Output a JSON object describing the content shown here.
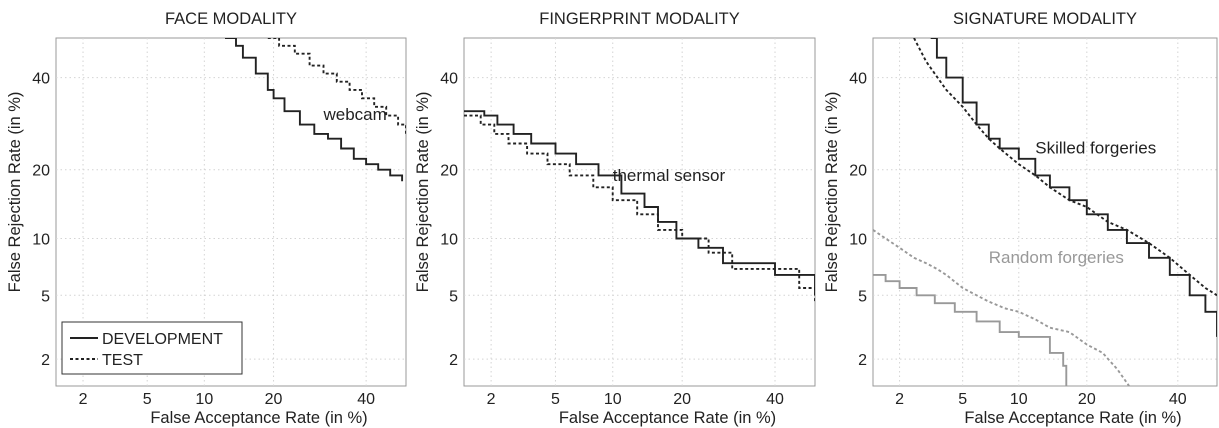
{
  "chart_data": [
    {
      "type": "line",
      "title": "FACE MODALITY",
      "xlabel": "False Acceptance Rate (in %)",
      "ylabel": "False Rejection Rate (in %)",
      "x_scale": "probit",
      "y_scale": "probit",
      "xlim": [
        1.3,
        50
      ],
      "ylim": [
        1.3,
        50
      ],
      "xticks": [
        2,
        5,
        10,
        20,
        40
      ],
      "yticks": [
        2,
        5,
        10,
        20,
        40
      ],
      "grid": true,
      "legend": {
        "position": "bottom-left",
        "entries": [
          {
            "label": "DEVELOPMENT",
            "style": "solid",
            "color": "#222222"
          },
          {
            "label": "TEST",
            "style": "dashed",
            "color": "#222222"
          }
        ]
      },
      "annotations": [
        {
          "text": "webcam",
          "x": 30,
          "y": 30,
          "color": "#222222"
        }
      ],
      "series": [
        {
          "name": "DEVELOPMENT",
          "style": "solid",
          "color": "#222222",
          "step": true,
          "x": [
            12.5,
            14,
            15,
            17,
            19,
            20,
            22,
            25,
            28,
            31,
            34,
            37,
            40,
            43,
            46,
            49
          ],
          "y": [
            50,
            48,
            45,
            41,
            37,
            35,
            32,
            29,
            27,
            26,
            24,
            22,
            21,
            20,
            19,
            18
          ]
        },
        {
          "name": "TEST",
          "style": "dashed",
          "color": "#222222",
          "step": true,
          "x": [
            19,
            21,
            24,
            27,
            30,
            33,
            36,
            39,
            42,
            45,
            48,
            50
          ],
          "y": [
            50,
            48,
            46,
            43,
            41,
            39,
            37,
            35,
            33,
            31,
            29,
            27
          ]
        }
      ]
    },
    {
      "type": "line",
      "title": "FINGERPRINT MODALITY",
      "xlabel": "False Acceptance Rate (in %)",
      "ylabel": "False Rejection Rate (in %)",
      "x_scale": "probit",
      "y_scale": "probit",
      "xlim": [
        1.3,
        50
      ],
      "ylim": [
        1.3,
        50
      ],
      "xticks": [
        2,
        5,
        10,
        20,
        40
      ],
      "yticks": [
        2,
        5,
        10,
        20,
        40
      ],
      "grid": true,
      "annotations": [
        {
          "text": "thermal sensor",
          "x": 10,
          "y": 18,
          "color": "#222222"
        }
      ],
      "series": [
        {
          "name": "DEVELOPMENT",
          "style": "solid",
          "color": "#222222",
          "step": true,
          "x": [
            1.3,
            1.8,
            2.2,
            2.8,
            3.6,
            5,
            6.5,
            8.5,
            11,
            14,
            16,
            19,
            23,
            28,
            40,
            50
          ],
          "y": [
            32,
            31,
            29,
            27,
            25,
            23,
            21,
            19,
            16,
            14,
            12,
            10,
            9,
            7.5,
            6.5,
            5
          ]
        },
        {
          "name": "TEST",
          "style": "dashed",
          "color": "#222222",
          "step": true,
          "x": [
            1.3,
            1.7,
            2.1,
            2.6,
            3.4,
            4.5,
            6,
            8,
            10,
            13,
            16,
            20,
            25,
            30,
            46,
            50
          ],
          "y": [
            31,
            29,
            27,
            25,
            23,
            21,
            19,
            17,
            15,
            13,
            11,
            10,
            8.5,
            7,
            5.5,
            4.5
          ]
        }
      ]
    },
    {
      "type": "line",
      "title": "SIGNATURE MODALITY",
      "xlabel": "False Acceptance Rate (in %)",
      "ylabel": "False Rejection Rate (in %)",
      "x_scale": "probit",
      "y_scale": "probit",
      "xlim": [
        1.3,
        50
      ],
      "ylim": [
        1.3,
        50
      ],
      "xticks": [
        2,
        5,
        10,
        20,
        40
      ],
      "yticks": [
        2,
        5,
        10,
        20,
        40
      ],
      "grid": true,
      "annotations": [
        {
          "text": "Skilled forgeries",
          "x": 12,
          "y": 23,
          "color": "#222222"
        },
        {
          "text": "Random forgeries",
          "x": 7,
          "y": 7.5,
          "color": "#999999"
        }
      ],
      "series": [
        {
          "name": "Skilled forgeries DEVELOPMENT",
          "style": "solid",
          "color": "#222222",
          "step": true,
          "x": [
            3.2,
            3.5,
            4,
            5,
            6,
            7,
            8,
            10,
            12,
            14,
            17,
            20,
            24,
            28,
            33,
            38,
            43,
            47,
            50
          ],
          "y": [
            50,
            45,
            40,
            34,
            29,
            26,
            24,
            22,
            19,
            17,
            15,
            13,
            11,
            9.5,
            8,
            6.5,
            5,
            4,
            2.8
          ]
        },
        {
          "name": "Skilled forgeries TEST",
          "style": "dashed",
          "color": "#222222",
          "step": false,
          "x": [
            2.5,
            3,
            4,
            5,
            6,
            7,
            8,
            10,
            12,
            14,
            17,
            20,
            24,
            28,
            33,
            38,
            43,
            47,
            50
          ],
          "y": [
            50,
            44,
            37,
            33,
            29,
            26,
            24,
            21,
            19,
            17,
            15,
            14,
            12,
            11,
            9.5,
            8,
            6.5,
            5.5,
            5
          ]
        },
        {
          "name": "Random forgeries DEVELOPMENT",
          "style": "solid",
          "color": "#999999",
          "step": true,
          "x": [
            1.3,
            1.6,
            2,
            2.6,
            3.4,
            4.5,
            6,
            8,
            10,
            12,
            14,
            16,
            16.5
          ],
          "y": [
            6.5,
            6,
            5.5,
            5,
            4.5,
            4,
            3.5,
            3,
            2.8,
            2.8,
            2.2,
            1.8,
            1.3
          ]
        },
        {
          "name": "Random forgeries TEST",
          "style": "dashed",
          "color": "#999999",
          "step": false,
          "x": [
            1.3,
            1.6,
            2,
            2.5,
            3,
            3.5,
            4,
            5,
            6,
            7,
            8.5,
            10,
            12,
            14,
            17,
            20,
            23,
            26,
            28.5
          ],
          "y": [
            11,
            10,
            9,
            8,
            7.5,
            7,
            6.5,
            5.5,
            5,
            4.6,
            4.2,
            4,
            3.6,
            3.2,
            3,
            2.5,
            2.2,
            1.7,
            1.3
          ]
        }
      ]
    }
  ]
}
